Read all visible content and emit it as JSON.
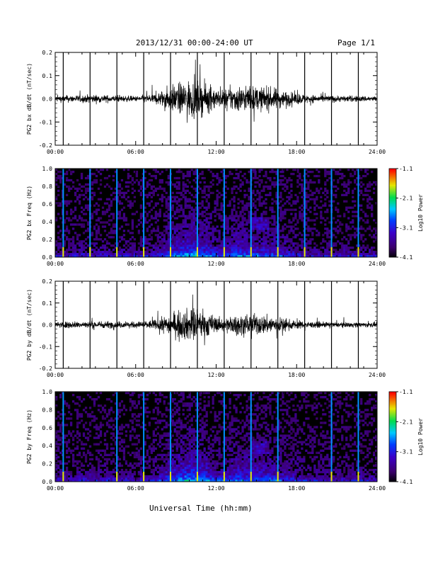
{
  "header": {
    "title": "2013/12/31  00:00-24:00 UT",
    "page": "Page 1/1"
  },
  "x_axis_title": "Universal Time (hh:mm)",
  "x_ticks": [
    "00:00",
    "06:00",
    "12:00",
    "18:00",
    "24:00"
  ],
  "colorbar": {
    "label": "Log10 Power",
    "ticks": [
      "-1.1",
      "-2.1",
      "-3.1",
      "-4.1"
    ]
  },
  "chart_data": [
    {
      "type": "line",
      "ylabel": "PG2 bx dB/dt (nT/sec)",
      "xlim": [
        0,
        24
      ],
      "ylim": [
        -0.2,
        0.2
      ],
      "y_ticks": [
        "0.2",
        "0.1",
        "0.0",
        "-0.1",
        "-0.2"
      ],
      "activity_envelope": [
        {
          "x": 0,
          "amp": 0.012
        },
        {
          "x": 3,
          "amp": 0.015
        },
        {
          "x": 6,
          "amp": 0.01
        },
        {
          "x": 7.5,
          "amp": 0.02
        },
        {
          "x": 8.5,
          "amp": 0.045
        },
        {
          "x": 10,
          "amp": 0.07
        },
        {
          "x": 11.3,
          "amp": 0.055
        },
        {
          "x": 12.3,
          "amp": 0.03
        },
        {
          "x": 13.5,
          "amp": 0.05
        },
        {
          "x": 15,
          "amp": 0.045
        },
        {
          "x": 16.3,
          "amp": 0.04
        },
        {
          "x": 17.5,
          "amp": 0.025
        },
        {
          "x": 19,
          "amp": 0.015
        },
        {
          "x": 21,
          "amp": 0.012
        },
        {
          "x": 24,
          "amp": 0.01
        }
      ],
      "spikes_hours": [
        0.6,
        2.6,
        4.6,
        6.6,
        8.6,
        10.6,
        12.6,
        14.6,
        16.6,
        18.6,
        20.6,
        22.6
      ]
    },
    {
      "type": "heatmap",
      "ylabel": "PG2 bx Freq (Hz)",
      "xlim": [
        0,
        24
      ],
      "ylim": [
        0.0,
        1.0
      ],
      "y_ticks": [
        "1.0",
        "0.8",
        "0.6",
        "0.4",
        "0.2",
        "0.0"
      ],
      "zlim": [
        -4.1,
        -1.1
      ],
      "spikes_hours": [
        0.6,
        2.6,
        4.6,
        6.6,
        8.6,
        10.6,
        12.6,
        14.6,
        16.6,
        18.6,
        20.6,
        22.6
      ]
    },
    {
      "type": "line",
      "ylabel": "PG2 by dB/dt (nT/sec)",
      "xlim": [
        0,
        24
      ],
      "ylim": [
        -0.2,
        0.2
      ],
      "y_ticks": [
        "0.2",
        "0.1",
        "0.0",
        "-0.1",
        "-0.2"
      ],
      "activity_envelope": [
        {
          "x": 0,
          "amp": 0.012
        },
        {
          "x": 3,
          "amp": 0.015
        },
        {
          "x": 6,
          "amp": 0.012
        },
        {
          "x": 7.5,
          "amp": 0.02
        },
        {
          "x": 8.5,
          "amp": 0.04
        },
        {
          "x": 10,
          "amp": 0.065
        },
        {
          "x": 11.3,
          "amp": 0.05
        },
        {
          "x": 12.3,
          "amp": 0.025
        },
        {
          "x": 13.5,
          "amp": 0.04
        },
        {
          "x": 15,
          "amp": 0.04
        },
        {
          "x": 16.3,
          "amp": 0.035
        },
        {
          "x": 17.5,
          "amp": 0.02
        },
        {
          "x": 19,
          "amp": 0.012
        },
        {
          "x": 21,
          "amp": 0.01
        },
        {
          "x": 24,
          "amp": 0.01
        }
      ],
      "spikes_hours": [
        0.6,
        2.6,
        4.6,
        6.6,
        8.6,
        10.6,
        12.6,
        14.6,
        16.6,
        18.6,
        20.6,
        22.6
      ]
    },
    {
      "type": "heatmap",
      "ylabel": "PG2 by Freq (Hz)",
      "xlim": [
        0,
        24
      ],
      "ylim": [
        0.0,
        1.0
      ],
      "y_ticks": [
        "1.0",
        "0.8",
        "0.6",
        "0.4",
        "0.2",
        "0.0"
      ],
      "zlim": [
        -4.1,
        -1.1
      ],
      "spikes_hours": [
        0.6,
        4.6,
        6.6,
        8.6,
        10.6,
        12.6,
        14.6,
        16.6,
        20.6,
        22.6
      ]
    }
  ]
}
